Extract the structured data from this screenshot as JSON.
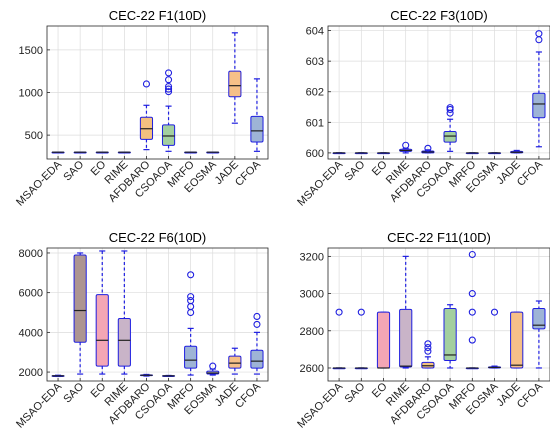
{
  "chart_data": [
    {
      "type": "box",
      "title": "CEC-22 F1(10D)",
      "categories": [
        "MSAO-EDA",
        "SAO",
        "EO",
        "RIME",
        "AFDBARO",
        "CSOAOA",
        "MRFO",
        "EOSMA",
        "JADE",
        "CFOA"
      ],
      "ylim": [
        220,
        1780
      ],
      "yticks": [
        500,
        1000,
        1500
      ],
      "grid": true,
      "colors": [
        "#b3b3b3",
        "#f4a6b5",
        "#f4a6b5",
        "#c9b4c8",
        "#f3c180",
        "#a3cf9f",
        "#b3b3b3",
        "#b3b3b3",
        "#f6c088",
        "#9eb4d6"
      ],
      "boxes": [
        {
          "q1": 300,
          "median": 300,
          "q3": 300,
          "low": 300,
          "high": 300,
          "outliers": []
        },
        {
          "q1": 300,
          "median": 300,
          "q3": 300,
          "low": 300,
          "high": 300,
          "outliers": []
        },
        {
          "q1": 300,
          "median": 300,
          "q3": 300,
          "low": 300,
          "high": 300,
          "outliers": []
        },
        {
          "q1": 300,
          "median": 300,
          "q3": 300,
          "low": 300,
          "high": 300,
          "outliers": []
        },
        {
          "q1": 450,
          "median": 575,
          "q3": 710,
          "low": 330,
          "high": 850,
          "outliers": [
            1100
          ]
        },
        {
          "q1": 380,
          "median": 490,
          "q3": 620,
          "low": 310,
          "high": 840,
          "outliers": [
            1010,
            1040,
            1070,
            1150,
            1230
          ]
        },
        {
          "q1": 300,
          "median": 300,
          "q3": 300,
          "low": 300,
          "high": 300,
          "outliers": []
        },
        {
          "q1": 300,
          "median": 300,
          "q3": 300,
          "low": 300,
          "high": 300,
          "outliers": []
        },
        {
          "q1": 950,
          "median": 1080,
          "q3": 1250,
          "low": 640,
          "high": 1700,
          "outliers": []
        },
        {
          "q1": 420,
          "median": 550,
          "q3": 720,
          "low": 310,
          "high": 1160,
          "outliers": []
        }
      ]
    },
    {
      "type": "box",
      "title": "CEC-22 F3(10D)",
      "categories": [
        "MSAO-EDA",
        "SAO",
        "EO",
        "RIME",
        "AFDBARO",
        "CSOAOA",
        "MRFO",
        "EOSMA",
        "JADE",
        "CFOA"
      ],
      "ylim": [
        599.8,
        604.15
      ],
      "yticks": [
        600,
        601,
        602,
        603,
        604
      ],
      "grid": true,
      "colors": [
        "#b3b3b3",
        "#f4a6b5",
        "#f4a6b5",
        "#c9b4c8",
        "#f3c180",
        "#a3cf9f",
        "#b3b3b3",
        "#b3b3b3",
        "#f6c088",
        "#9eb4d6"
      ],
      "boxes": [
        {
          "q1": 600,
          "median": 600,
          "q3": 600,
          "low": 600,
          "high": 600,
          "outliers": []
        },
        {
          "q1": 600,
          "median": 600,
          "q3": 600,
          "low": 600,
          "high": 600,
          "outliers": []
        },
        {
          "q1": 600,
          "median": 600,
          "q3": 600,
          "low": 600,
          "high": 600,
          "outliers": []
        },
        {
          "q1": 600.05,
          "median": 600.08,
          "q3": 600.12,
          "low": 600,
          "high": 600.15,
          "outliers": [
            600.25
          ]
        },
        {
          "q1": 600,
          "median": 600.03,
          "q3": 600.06,
          "low": 600,
          "high": 600.1,
          "outliers": [
            600.15
          ]
        },
        {
          "q1": 600.35,
          "median": 600.55,
          "q3": 600.7,
          "low": 600.05,
          "high": 601.1,
          "outliers": [
            601.3,
            601.42,
            601.48
          ]
        },
        {
          "q1": 600,
          "median": 600,
          "q3": 600,
          "low": 600,
          "high": 600,
          "outliers": []
        },
        {
          "q1": 600,
          "median": 600,
          "q3": 600,
          "low": 600,
          "high": 600,
          "outliers": []
        },
        {
          "q1": 600,
          "median": 600.02,
          "q3": 600.05,
          "low": 600,
          "high": 600.08,
          "outliers": []
        },
        {
          "q1": 601.15,
          "median": 601.6,
          "q3": 601.95,
          "low": 600.2,
          "high": 603.3,
          "outliers": [
            603.7,
            603.9
          ]
        }
      ]
    },
    {
      "type": "box",
      "title": "CEC-22 F6(10D)",
      "categories": [
        "MSAO-EDA",
        "SAO",
        "EO",
        "RIME",
        "AFDBARO",
        "CSOAOA",
        "MRFO",
        "EOSMA",
        "JADE",
        "CFOA"
      ],
      "ylim": [
        1550,
        8250
      ],
      "yticks": [
        2000,
        4000,
        6000,
        8000
      ],
      "grid": true,
      "colors": [
        "#b3b3b3",
        "#ad9592",
        "#f4a6b5",
        "#c9b4c8",
        "#f3c180",
        "#a3cf9f",
        "#9eb4d6",
        "#b3b3b3",
        "#f6c088",
        "#9eb4d6"
      ],
      "boxes": [
        {
          "q1": 1800,
          "median": 1810,
          "q3": 1820,
          "low": 1780,
          "high": 1840,
          "outliers": []
        },
        {
          "q1": 3500,
          "median": 5100,
          "q3": 7900,
          "low": 1900,
          "high": 8000,
          "outliers": []
        },
        {
          "q1": 2300,
          "median": 3600,
          "q3": 5900,
          "low": 1900,
          "high": 8100,
          "outliers": []
        },
        {
          "q1": 2300,
          "median": 3600,
          "q3": 4700,
          "low": 1900,
          "high": 8100,
          "outliers": []
        },
        {
          "q1": 1820,
          "median": 1840,
          "q3": 1860,
          "low": 1800,
          "high": 1880,
          "outliers": []
        },
        {
          "q1": 1800,
          "median": 1810,
          "q3": 1820,
          "low": 1790,
          "high": 1830,
          "outliers": []
        },
        {
          "q1": 2200,
          "median": 2600,
          "q3": 3300,
          "low": 1850,
          "high": 4200,
          "outliers": [
            5000,
            5300,
            5600,
            5800,
            6900
          ]
        },
        {
          "q1": 1900,
          "median": 1950,
          "q3": 2050,
          "low": 1850,
          "high": 2150,
          "outliers": [
            2300
          ]
        },
        {
          "q1": 2200,
          "median": 2450,
          "q3": 2800,
          "low": 1900,
          "high": 3200,
          "outliers": []
        },
        {
          "q1": 2200,
          "median": 2550,
          "q3": 3100,
          "low": 1900,
          "high": 4000,
          "outliers": [
            4400,
            4800
          ]
        }
      ]
    },
    {
      "type": "box",
      "title": "CEC-22 F11(10D)",
      "categories": [
        "MSAO-EDA",
        "SAO",
        "EO",
        "RIME",
        "AFDBARO",
        "CSOAOA",
        "MRFO",
        "EOSMA",
        "JADE",
        "CFOA"
      ],
      "ylim": [
        2530,
        3245
      ],
      "yticks": [
        2600,
        2800,
        3000,
        3200
      ],
      "grid": true,
      "colors": [
        "#b3b3b3",
        "#f4a6b5",
        "#f4a6b5",
        "#c9b4c8",
        "#f3c180",
        "#a3cf9f",
        "#9eb4d6",
        "#b3b3b3",
        "#f6c088",
        "#9eb4d6"
      ],
      "boxes": [
        {
          "q1": 2600,
          "median": 2600,
          "q3": 2600,
          "low": 2600,
          "high": 2600,
          "outliers": [
            2900
          ]
        },
        {
          "q1": 2600,
          "median": 2600,
          "q3": 2600,
          "low": 2600,
          "high": 2600,
          "outliers": [
            2900
          ]
        },
        {
          "q1": 2600,
          "median": 2600,
          "q3": 2900,
          "low": 2600,
          "high": 2900,
          "outliers": []
        },
        {
          "q1": 2605,
          "median": 2610,
          "q3": 2915,
          "low": 2600,
          "high": 3200,
          "outliers": []
        },
        {
          "q1": 2600,
          "median": 2612,
          "q3": 2630,
          "low": 2600,
          "high": 2660,
          "outliers": [
            2690,
            2710,
            2730
          ]
        },
        {
          "q1": 2640,
          "median": 2670,
          "q3": 2920,
          "low": 2600,
          "high": 2940,
          "outliers": []
        },
        {
          "q1": 2600,
          "median": 2600,
          "q3": 2600,
          "low": 2600,
          "high": 2600,
          "outliers": [
            2750,
            2900,
            3000,
            3210
          ]
        },
        {
          "q1": 2600,
          "median": 2603,
          "q3": 2606,
          "low": 2600,
          "high": 2610,
          "outliers": [
            2900
          ]
        },
        {
          "q1": 2600,
          "median": 2615,
          "q3": 2900,
          "low": 2600,
          "high": 2900,
          "outliers": []
        },
        {
          "q1": 2810,
          "median": 2830,
          "q3": 2920,
          "low": 2600,
          "high": 2960,
          "outliers": []
        }
      ]
    }
  ]
}
